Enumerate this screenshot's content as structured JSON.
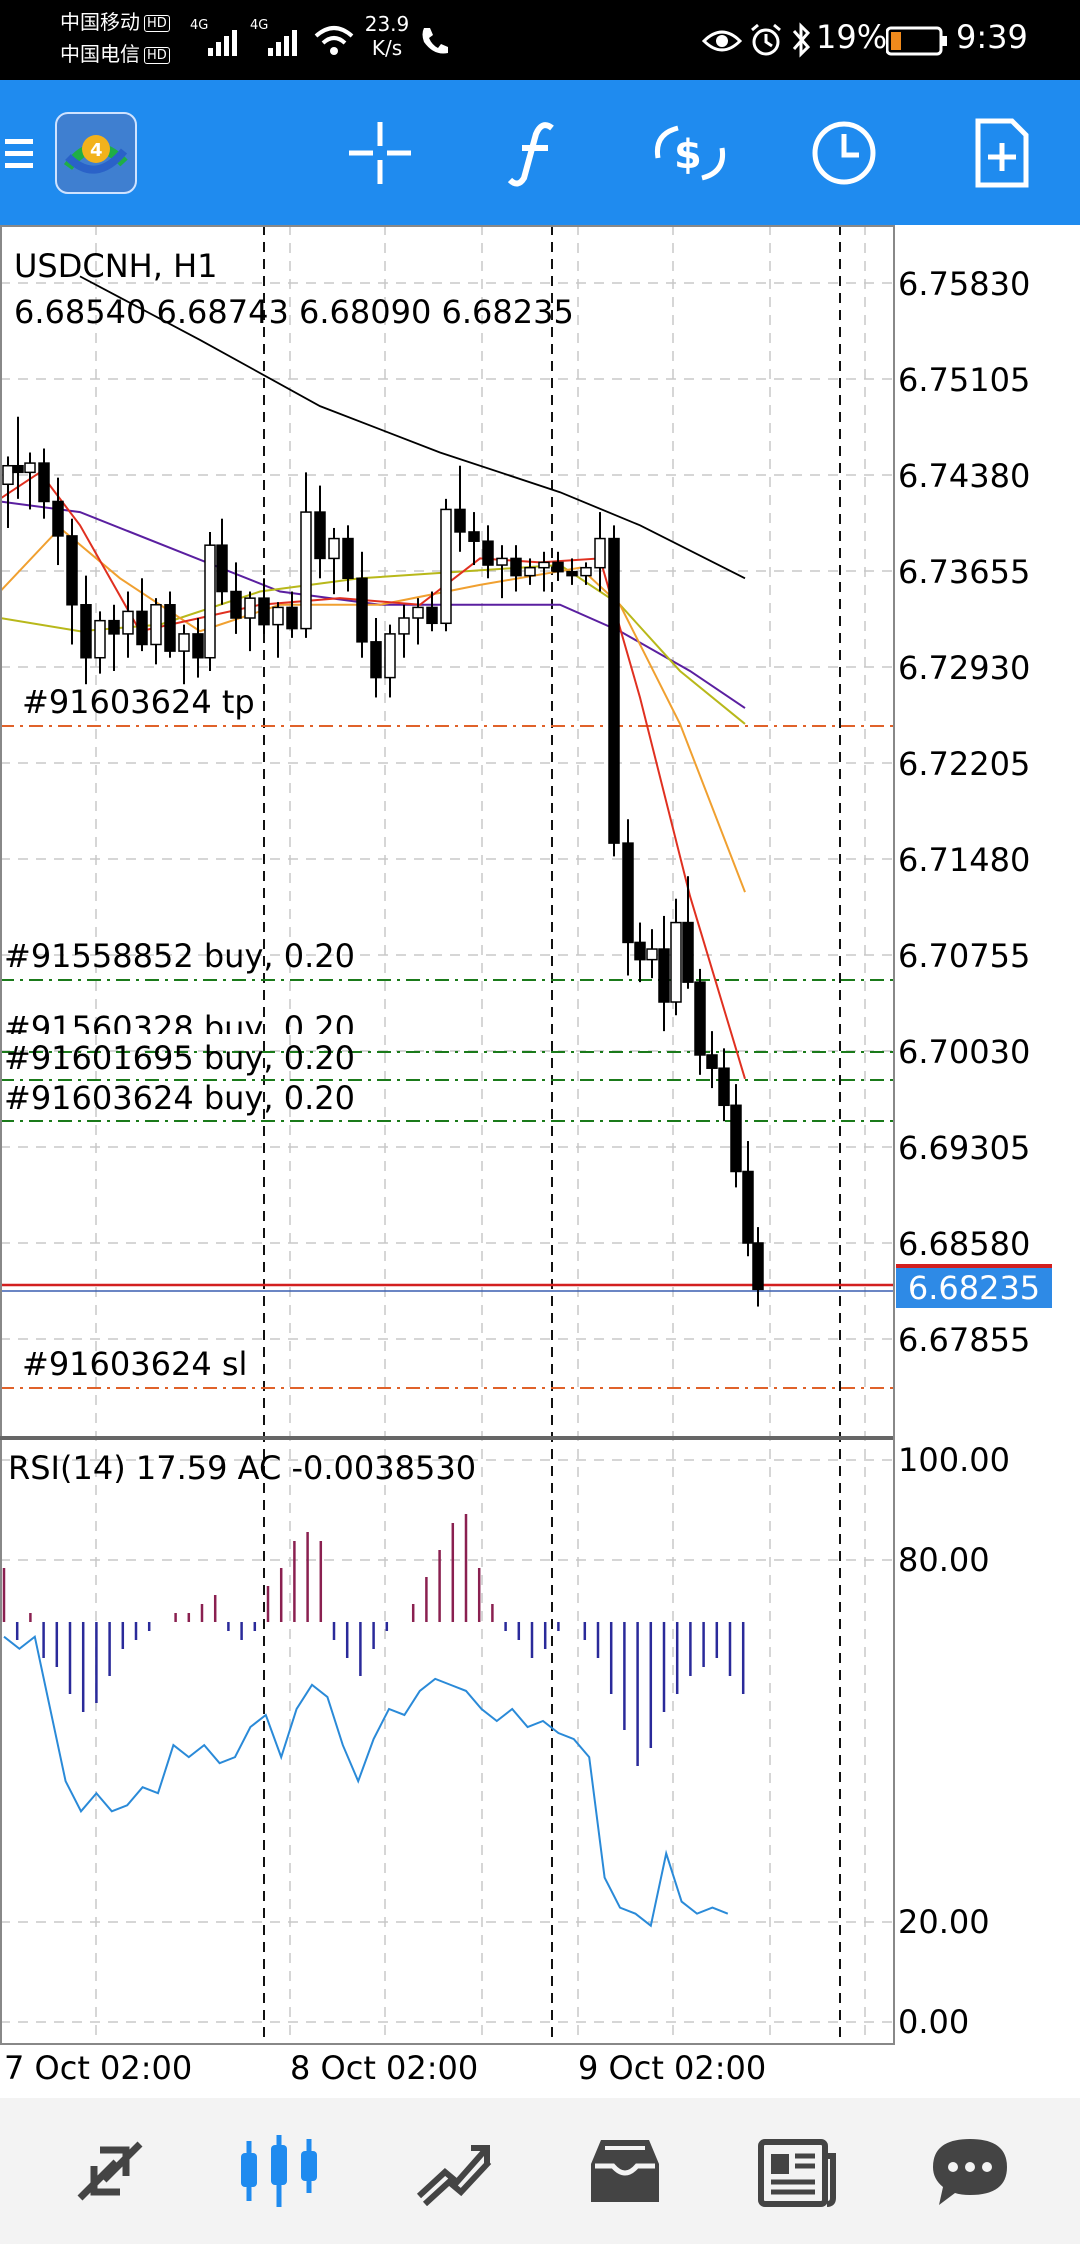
{
  "status_bar": {
    "carrier1": "中国移动",
    "carrier2": "中国电信",
    "hd": "HD",
    "net1": "4G",
    "net2": "4G",
    "speed_value": "23.9",
    "speed_unit": "K/s",
    "battery": "19%",
    "time": "9:39"
  },
  "toolbar": {
    "icons": [
      "menu-icon",
      "mt4-logo",
      "crosshair-icon",
      "indicator-f-icon",
      "trade-dollar-icon",
      "clock-icon",
      "new-file-icon"
    ],
    "color": "#1f8bef"
  },
  "chart": {
    "symbol": "USDCNH, H1",
    "ohlc": "6.68540 6.68743 6.68090 6.68235",
    "current_price": "6.68235",
    "price_axis": [
      "6.75830",
      "6.75105",
      "6.74380",
      "6.73655",
      "6.72930",
      "6.72205",
      "6.71480",
      "6.70755",
      "6.70030",
      "6.69305",
      "6.68580",
      "6.67855"
    ],
    "orders": {
      "tp": "#91603624 tp",
      "buy1": "#91558852 buy, 0.20",
      "buy2": "#91560328 buy, 0.20",
      "buy3": "#91601695 buy, 0.20",
      "buy4": "#91603624 buy, 0.20",
      "sl": "#91603624 sl"
    },
    "time_axis": [
      "7 Oct 02:00",
      "8 Oct 02:00",
      "9 Oct 02:00"
    ]
  },
  "indicator": {
    "label": "RSI(14) 17.59 AC -0.0038530",
    "axis": [
      "100.00",
      "80.00",
      "20.00",
      "0.00"
    ]
  },
  "bottom_nav": {
    "items": [
      "quotes-icon",
      "chart-icon",
      "trade-icon",
      "history-icon",
      "news-icon",
      "chat-icon"
    ],
    "active_index": 1
  },
  "colors": {
    "accent": "#1f8bef",
    "bid_line": "#d21f1f",
    "tp_sl_line": "#e0622a",
    "buy_line": "#1a7a1a",
    "rsi": "#2a8ad8",
    "ac_up": "#8a2050",
    "ac_down": "#2a2a9a"
  }
}
